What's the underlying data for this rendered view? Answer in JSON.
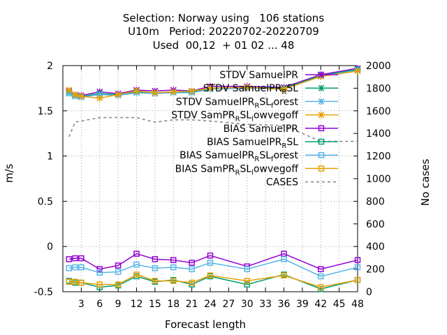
{
  "chart_data": {
    "type": "line",
    "title_lines": [
      "Selection: Norway using   106 stations",
      "U10m   Period: 20220702-20220709",
      "Used  00,12  + 01 02 ... 48"
    ],
    "xlabel": "Forecast length",
    "ylabel": "m/s",
    "y2label": "No cases",
    "xlim": [
      0,
      48
    ],
    "ylim": [
      -0.5,
      2
    ],
    "y2lim": [
      0,
      2000
    ],
    "x_ticks": [
      3,
      6,
      9,
      12,
      15,
      18,
      21,
      24,
      27,
      30,
      33,
      36,
      39,
      42,
      45,
      48
    ],
    "y_ticks": [
      -0.5,
      0,
      0.5,
      1,
      1.5,
      2
    ],
    "y_tick_labels": [
      "-0.5",
      "0",
      "0.5",
      "1",
      "1.5",
      "2"
    ],
    "y2_ticks": [
      0,
      200,
      400,
      600,
      800,
      1000,
      1200,
      1400,
      1600,
      1800,
      2000
    ],
    "grid": true,
    "legend_position": "top-right",
    "x": [
      1,
      2,
      3,
      6,
      9,
      12,
      15,
      18,
      21,
      24,
      30,
      36,
      42,
      48
    ],
    "series": [
      {
        "name": "STDV SamuelPR",
        "axis": "y1",
        "marker": "star",
        "color": "#9400d3",
        "values": [
          1.72,
          1.68,
          1.67,
          1.71,
          1.69,
          1.73,
          1.72,
          1.73,
          1.72,
          1.77,
          1.77,
          1.76,
          1.9,
          1.97
        ]
      },
      {
        "name": "STDV SamuelPR_RSL",
        "axis": "y1",
        "marker": "star",
        "color": "#009e73",
        "values": [
          1.7,
          1.67,
          1.66,
          1.69,
          1.68,
          1.71,
          1.7,
          1.71,
          1.71,
          1.75,
          1.76,
          1.75,
          1.89,
          1.96
        ]
      },
      {
        "name": "STDV SamuelPR_RSL_forest",
        "axis": "y1",
        "marker": "star",
        "color": "#56b4e9",
        "values": [
          1.69,
          1.66,
          1.65,
          1.68,
          1.67,
          1.7,
          1.69,
          1.7,
          1.7,
          1.74,
          1.75,
          1.74,
          1.88,
          1.95
        ]
      },
      {
        "name": "STDV SamPR_RSL_lowvegoff",
        "axis": "y1",
        "marker": "star",
        "color": "#e69f00",
        "values": [
          1.73,
          1.68,
          1.66,
          1.64,
          1.68,
          1.72,
          1.7,
          1.71,
          1.72,
          1.75,
          1.76,
          1.74,
          1.88,
          1.94
        ]
      },
      {
        "name": "BIAS SamuelPR",
        "axis": "y1",
        "marker": "square",
        "color": "#9400d3",
        "values": [
          -0.14,
          -0.13,
          -0.13,
          -0.25,
          -0.21,
          -0.08,
          -0.14,
          -0.15,
          -0.18,
          -0.1,
          -0.22,
          -0.08,
          -0.25,
          -0.15
        ]
      },
      {
        "name": "BIAS SamuelPR_RSL",
        "axis": "y1",
        "marker": "square",
        "color": "#009e73",
        "values": [
          -0.38,
          -0.4,
          -0.4,
          -0.45,
          -0.43,
          -0.33,
          -0.39,
          -0.37,
          -0.42,
          -0.33,
          -0.42,
          -0.31,
          -0.47,
          -0.37
        ]
      },
      {
        "name": "BIAS SamuelPR_RSL_forest",
        "axis": "y1",
        "marker": "square",
        "color": "#56b4e9",
        "values": [
          -0.24,
          -0.23,
          -0.23,
          -0.29,
          -0.28,
          -0.2,
          -0.24,
          -0.23,
          -0.25,
          -0.18,
          -0.25,
          -0.14,
          -0.33,
          -0.23
        ]
      },
      {
        "name": "BIAS SamPR_RSL_lowvegoff",
        "axis": "y1",
        "marker": "square",
        "color": "#e69f00",
        "values": [
          -0.39,
          -0.39,
          -0.4,
          -0.42,
          -0.42,
          -0.31,
          -0.38,
          -0.38,
          -0.4,
          -0.32,
          -0.38,
          -0.32,
          -0.45,
          -0.37
        ]
      },
      {
        "name": "CASES",
        "axis": "y2",
        "marker": "none",
        "dashed": true,
        "color": "#808080",
        "values": [
          1370,
          1500,
          1510,
          1540,
          1540,
          1540,
          1500,
          1520,
          1520,
          1510,
          1480,
          1470,
          1330,
          1330
        ]
      }
    ],
    "legend": [
      {
        "pre": "STDV SamuelPR",
        "sub": "",
        "post": "",
        "sub2": "",
        "post2": ""
      },
      {
        "pre": "STDV SamuelPR",
        "sub": "R",
        "post": "SL",
        "sub2": "",
        "post2": ""
      },
      {
        "pre": "STDV SamuelPR",
        "sub": "R",
        "post": "SL",
        "sub2": "f",
        "post2": "orest"
      },
      {
        "pre": "STDV SamPR",
        "sub": "R",
        "post": "SL",
        "sub2": "l",
        "post2": "owvegoff"
      },
      {
        "pre": "BIAS SamuelPR",
        "sub": "",
        "post": "",
        "sub2": "",
        "post2": ""
      },
      {
        "pre": "BIAS SamuelPR",
        "sub": "R",
        "post": "SL",
        "sub2": "",
        "post2": ""
      },
      {
        "pre": "BIAS SamuelPR",
        "sub": "R",
        "post": "SL",
        "sub2": "f",
        "post2": "orest"
      },
      {
        "pre": "BIAS SamPR",
        "sub": "R",
        "post": "SL",
        "sub2": "l",
        "post2": "owvegoff"
      },
      {
        "pre": "CASES",
        "sub": "",
        "post": "",
        "sub2": "",
        "post2": ""
      }
    ]
  }
}
